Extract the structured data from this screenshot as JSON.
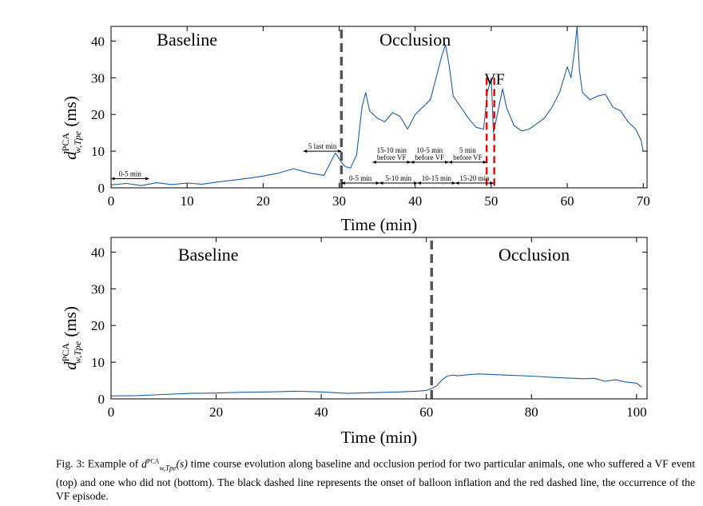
{
  "figure": {
    "caption_prefix": "Fig. 3: Example of ",
    "caption_symbol": "d",
    "caption_symbol_sup": "PCA",
    "caption_symbol_sub": "w,Tpe",
    "caption_arg": "(s)",
    "caption_rest": " time course evolution along baseline and occlusion period for two particular animals, one who suffered a VF event (top) and one who did not (bottom). The black dashed line represents the onset of balloon inflation and the red dashed line, the occurrence of the VF episode."
  },
  "chart_data": [
    {
      "type": "line",
      "ylabel_main": "d",
      "ylabel_sup": "PCA",
      "ylabel_sub": "w,Tpe",
      "ylabel_unit": "(ms)",
      "xlabel": "Time (min)",
      "xlim": [
        0,
        70.5
      ],
      "ylim": [
        0,
        44
      ],
      "xticks": [
        0,
        10,
        20,
        30,
        40,
        50,
        60,
        70
      ],
      "yticks": [
        0,
        10,
        20,
        30,
        40
      ],
      "series_color": "#1f5aa6",
      "regions": [
        {
          "label": "Baseline",
          "x": 10
        },
        {
          "label": "Occlusion",
          "x": 40
        }
      ],
      "vlines": [
        {
          "x": 30.3,
          "color": "#555555",
          "dash": "dashed"
        },
        {
          "x": 49.4,
          "color": "#e01010",
          "dash": "dashed",
          "label": "VF"
        },
        {
          "x": 50.4,
          "color": "#e01010",
          "dash": "dashed"
        }
      ],
      "intervals": [
        {
          "label": "0-5 min",
          "from": 0,
          "to": 5,
          "y": 2.5
        },
        {
          "label": "5 last min",
          "from": 25.3,
          "to": 30.3,
          "y": 10
        },
        {
          "label": "0-5 min",
          "from": 30.3,
          "to": 35.3,
          "y": 1.3
        },
        {
          "label": "5-10 min",
          "from": 35.3,
          "to": 40.3,
          "y": 1.3
        },
        {
          "label": "10-15 min",
          "from": 40.3,
          "to": 45.3,
          "y": 1.3
        },
        {
          "label": "15-20 min",
          "from": 45.3,
          "to": 50.3,
          "y": 1.3
        },
        {
          "label": "15-10 min",
          "label2": "before VF",
          "from": 34.4,
          "to": 39.4,
          "y": 7
        },
        {
          "label": "10-5 min",
          "label2": "before VF",
          "from": 39.4,
          "to": 44.4,
          "y": 7
        },
        {
          "label": "5 min",
          "label2": "before VF",
          "from": 44.4,
          "to": 49.4,
          "y": 7
        }
      ],
      "series": [
        {
          "x": [
            0,
            2,
            4,
            6,
            8,
            10,
            12,
            14,
            16,
            18,
            20,
            22,
            24,
            26,
            28,
            29,
            29.5,
            30,
            30.3,
            30.8,
            31.5,
            32.3,
            33,
            33.5,
            34,
            35,
            36,
            37,
            38,
            39,
            40,
            41,
            42,
            42.5,
            43,
            43.5,
            44,
            44.5,
            45,
            46,
            47,
            48,
            49,
            49.5,
            50,
            50.3,
            50.8,
            51.5,
            52,
            53,
            54,
            55,
            56,
            57,
            58,
            59,
            60,
            60.5,
            61,
            61.3,
            61.6,
            62,
            63,
            64,
            65,
            66,
            67,
            68,
            69,
            69.7,
            70
          ],
          "y": [
            0.8,
            1.2,
            0.6,
            1.4,
            0.9,
            1.3,
            1.0,
            1.6,
            2.1,
            2.6,
            3.2,
            4.0,
            5.2,
            4.1,
            3.4,
            7.5,
            9.5,
            8.0,
            7.0,
            5.8,
            5.4,
            9.0,
            22.0,
            26.0,
            21.0,
            19.0,
            18.0,
            20.5,
            19.5,
            16.0,
            20.0,
            22.0,
            24.0,
            28.0,
            32.0,
            36.0,
            39.0,
            33.0,
            25.0,
            22.0,
            19.0,
            16.5,
            16.0,
            26.0,
            30.0,
            15.0,
            20.0,
            27.0,
            22.0,
            17.0,
            15.5,
            16.0,
            17.5,
            19.0,
            22.0,
            26.0,
            33.0,
            30.0,
            38.0,
            44.0,
            32.0,
            26.0,
            24.0,
            25.0,
            25.5,
            22.0,
            21.0,
            18.0,
            16.0,
            13.0,
            10.0
          ]
        }
      ]
    },
    {
      "type": "line",
      "ylabel_main": "d",
      "ylabel_sup": "PCA",
      "ylabel_sub": "w,Tpe",
      "ylabel_unit": "(ms)",
      "xlabel": "Time (min)",
      "xlim": [
        0,
        102
      ],
      "ylim": [
        0,
        44
      ],
      "xticks": [
        0,
        20,
        40,
        60,
        80,
        100
      ],
      "yticks": [
        0,
        10,
        20,
        30,
        40
      ],
      "series_color": "#1f5aa6",
      "regions": [
        {
          "label": "Baseline",
          "x": 18.5
        },
        {
          "label": "Occlusion",
          "x": 80.5
        }
      ],
      "vlines": [
        {
          "x": 61,
          "color": "#555555",
          "dash": "dashed"
        }
      ],
      "intervals": [],
      "series": [
        {
          "x": [
            0,
            5,
            10,
            15,
            20,
            25,
            30,
            35,
            40,
            45,
            50,
            55,
            58,
            60,
            61,
            62,
            63,
            64,
            65,
            66,
            68,
            70,
            75,
            80,
            85,
            90,
            92,
            94,
            96,
            98,
            100,
            101
          ],
          "y": [
            0.8,
            0.9,
            1.2,
            1.5,
            1.6,
            1.8,
            1.9,
            2.1,
            1.9,
            1.5,
            1.7,
            1.9,
            2.1,
            2.3,
            2.8,
            3.6,
            5.2,
            6.2,
            6.5,
            6.3,
            6.6,
            6.8,
            6.5,
            6.2,
            5.8,
            5.5,
            5.6,
            4.8,
            5.2,
            4.6,
            4.3,
            3.2
          ]
        }
      ]
    }
  ]
}
